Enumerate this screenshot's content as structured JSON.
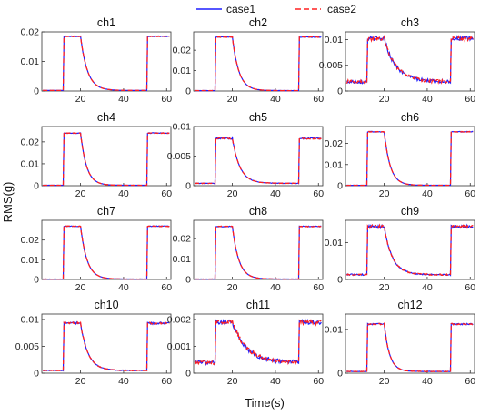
{
  "figure": {
    "ylabel": "RMS(g)",
    "xlabel": "Time(s)",
    "legend": [
      {
        "name": "case1",
        "color": "#1f1fff",
        "dash": "solid"
      },
      {
        "name": "case2",
        "color": "#ff2020",
        "dash": "dashed"
      }
    ]
  },
  "chart_data": [
    {
      "type": "line",
      "title": "ch1",
      "xlim": [
        2,
        62
      ],
      "ylim": [
        0,
        0.02
      ],
      "xticks": [
        20,
        40,
        60
      ],
      "yticks": [
        {
          "v": 0,
          "label": "0"
        },
        {
          "v": 0.01,
          "label": "0.01"
        },
        {
          "v": 0.02,
          "label": "0.02"
        }
      ],
      "high": 0.0185,
      "base": 0.0002,
      "t_start": 12,
      "t_fall": 20,
      "t_end": 51,
      "decay": 3.2,
      "noise": 0.02,
      "series": [
        {
          "name": "case1"
        },
        {
          "name": "case2"
        }
      ]
    },
    {
      "type": "line",
      "title": "ch2",
      "xlim": [
        2,
        62
      ],
      "ylim": [
        0,
        0.029
      ],
      "xticks": [
        20,
        40,
        60
      ],
      "yticks": [
        {
          "v": 0,
          "label": "0"
        },
        {
          "v": 0.01,
          "label": "0.01"
        },
        {
          "v": 0.02,
          "label": "0.02"
        }
      ],
      "high": 0.0265,
      "base": 0.0002,
      "t_start": 12,
      "t_fall": 20,
      "t_end": 51,
      "decay": 3.0,
      "noise": 0.02,
      "series": [
        {
          "name": "case1"
        },
        {
          "name": "case2"
        }
      ]
    },
    {
      "type": "line",
      "title": "ch3",
      "xlim": [
        2,
        62
      ],
      "ylim": [
        0,
        0.0115
      ],
      "xticks": [
        20,
        40,
        60
      ],
      "yticks": [
        {
          "v": 0,
          "label": "0"
        },
        {
          "v": 0.005,
          "label": "0.005"
        },
        {
          "v": 0.01,
          "label": "0.01"
        }
      ],
      "high": 0.0102,
      "base": 0.0018,
      "t_start": 12,
      "t_fall": 20,
      "t_end": 51,
      "decay": 5.5,
      "noise": 0.12,
      "series": [
        {
          "name": "case1"
        },
        {
          "name": "case2"
        }
      ]
    },
    {
      "type": "line",
      "title": "ch4",
      "xlim": [
        2,
        62
      ],
      "ylim": [
        0,
        0.027
      ],
      "xticks": [
        20,
        40,
        60
      ],
      "yticks": [
        {
          "v": 0,
          "label": "0"
        },
        {
          "v": 0.01,
          "label": "0.01"
        },
        {
          "v": 0.02,
          "label": "0.02"
        }
      ],
      "high": 0.024,
      "base": 0.0002,
      "t_start": 12,
      "t_fall": 20,
      "t_end": 51,
      "decay": 2.8,
      "noise": 0.02,
      "series": [
        {
          "name": "case1"
        },
        {
          "name": "case2"
        }
      ]
    },
    {
      "type": "line",
      "title": "ch5",
      "xlim": [
        2,
        62
      ],
      "ylim": [
        0,
        0.01
      ],
      "xticks": [
        20,
        40,
        60
      ],
      "yticks": [
        {
          "v": 0,
          "label": "0"
        },
        {
          "v": 0.005,
          "label": "0.005"
        },
        {
          "v": 0.01,
          "label": "0.01"
        }
      ],
      "high": 0.008,
      "base": 0.0004,
      "t_start": 12,
      "t_fall": 20,
      "t_end": 51,
      "decay": 3.5,
      "noise": 0.05,
      "series": [
        {
          "name": "case1"
        },
        {
          "name": "case2"
        }
      ]
    },
    {
      "type": "line",
      "title": "ch6",
      "xlim": [
        2,
        62
      ],
      "ylim": [
        0,
        0.028
      ],
      "xticks": [
        20,
        40,
        60
      ],
      "yticks": [
        {
          "v": 0,
          "label": "0"
        },
        {
          "v": 0.01,
          "label": "0.01"
        },
        {
          "v": 0.02,
          "label": "0.02"
        }
      ],
      "high": 0.0255,
      "base": 0.0002,
      "t_start": 12,
      "t_fall": 20,
      "t_end": 51,
      "decay": 2.8,
      "noise": 0.02,
      "series": [
        {
          "name": "case1"
        },
        {
          "name": "case2"
        }
      ]
    },
    {
      "type": "line",
      "title": "ch7",
      "xlim": [
        2,
        62
      ],
      "ylim": [
        0,
        0.03
      ],
      "xticks": [
        20,
        40,
        60
      ],
      "yticks": [
        {
          "v": 0,
          "label": "0"
        },
        {
          "v": 0.01,
          "label": "0.01"
        },
        {
          "v": 0.02,
          "label": "0.02"
        }
      ],
      "high": 0.027,
      "base": 0.0002,
      "t_start": 12,
      "t_fall": 20,
      "t_end": 51,
      "decay": 3.0,
      "noise": 0.02,
      "series": [
        {
          "name": "case1"
        },
        {
          "name": "case2"
        }
      ]
    },
    {
      "type": "line",
      "title": "ch8",
      "xlim": [
        2,
        62
      ],
      "ylim": [
        0,
        0.029
      ],
      "xticks": [
        20,
        40,
        60
      ],
      "yticks": [
        {
          "v": 0,
          "label": "0"
        },
        {
          "v": 0.01,
          "label": "0.01"
        },
        {
          "v": 0.02,
          "label": "0.02"
        }
      ],
      "high": 0.026,
      "base": 0.0002,
      "t_start": 12,
      "t_fall": 20,
      "t_end": 51,
      "decay": 3.0,
      "noise": 0.02,
      "series": [
        {
          "name": "case1"
        },
        {
          "name": "case2"
        }
      ]
    },
    {
      "type": "line",
      "title": "ch9",
      "xlim": [
        2,
        62
      ],
      "ylim": [
        0,
        0.016
      ],
      "xticks": [
        20,
        40,
        60
      ],
      "yticks": [
        {
          "v": 0,
          "label": "0"
        },
        {
          "v": 0.01,
          "label": "0.01"
        }
      ],
      "high": 0.0143,
      "base": 0.0013,
      "t_start": 12,
      "t_fall": 20,
      "t_end": 51,
      "decay": 3.8,
      "noise": 0.08,
      "series": [
        {
          "name": "case1"
        },
        {
          "name": "case2"
        }
      ]
    },
    {
      "type": "line",
      "title": "ch10",
      "xlim": [
        2,
        62
      ],
      "ylim": [
        0,
        0.011
      ],
      "xticks": [
        20,
        40,
        60
      ],
      "yticks": [
        {
          "v": 0,
          "label": "0"
        },
        {
          "v": 0.005,
          "label": "0.005"
        },
        {
          "v": 0.01,
          "label": "0.01"
        }
      ],
      "high": 0.0093,
      "base": 0.0005,
      "t_start": 12,
      "t_fall": 20,
      "t_end": 51,
      "decay": 3.5,
      "noise": 0.06,
      "series": [
        {
          "name": "case1"
        },
        {
          "name": "case2"
        }
      ]
    },
    {
      "type": "line",
      "title": "ch11",
      "xlim": [
        2,
        62
      ],
      "ylim": [
        0,
        0.0022
      ],
      "xticks": [
        20,
        40,
        60
      ],
      "yticks": [
        {
          "v": 0,
          "label": "0"
        },
        {
          "v": 0.001,
          "label": "0.001"
        },
        {
          "v": 0.002,
          "label": "0.002"
        }
      ],
      "high": 0.0019,
      "base": 0.0004,
      "t_start": 12,
      "t_fall": 20,
      "t_end": 51,
      "decay": 6.5,
      "noise": 0.13,
      "series": [
        {
          "name": "case1"
        },
        {
          "name": "case2"
        }
      ]
    },
    {
      "type": "line",
      "title": "ch12",
      "xlim": [
        2,
        62
      ],
      "ylim": [
        0,
        0.0135
      ],
      "xticks": [
        20,
        40,
        60
      ],
      "yticks": [
        {
          "v": 0,
          "label": "0"
        },
        {
          "v": 0.01,
          "label": "0.01"
        }
      ],
      "high": 0.0112,
      "base": 0.0004,
      "t_start": 12,
      "t_fall": 20,
      "t_end": 51,
      "decay": 2.5,
      "noise": 0.04,
      "series": [
        {
          "name": "case1"
        },
        {
          "name": "case2"
        }
      ]
    }
  ]
}
